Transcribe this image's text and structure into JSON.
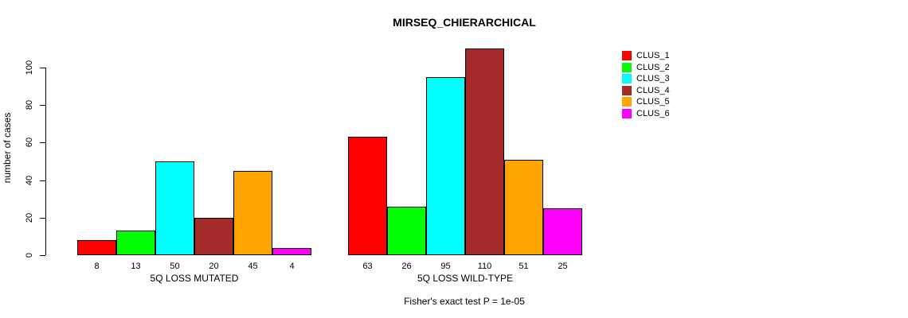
{
  "chart_data": {
    "type": "bar",
    "title": "MIRSEQ_CHIERARCHICAL",
    "ylabel": "number of cases",
    "xlabel": "",
    "ylim": [
      0,
      110
    ],
    "yticks": [
      0,
      20,
      40,
      60,
      80,
      100
    ],
    "grid": false,
    "legend_position": "right",
    "legend": [
      {
        "label": "CLUS_1",
        "color": "#FF0000"
      },
      {
        "label": "CLUS_2",
        "color": "#00FF00"
      },
      {
        "label": "CLUS_3",
        "color": "#00FFFF"
      },
      {
        "label": "CLUS_4",
        "color": "#A52A2A"
      },
      {
        "label": "CLUS_5",
        "color": "#FFA500"
      },
      {
        "label": "CLUS_6",
        "color": "#FF00FF"
      }
    ],
    "categories": [
      "CLUS_1",
      "CLUS_2",
      "CLUS_3",
      "CLUS_4",
      "CLUS_5",
      "CLUS_6"
    ],
    "groups": [
      {
        "label": "5Q LOSS MUTATED",
        "values": [
          8,
          13,
          50,
          20,
          45,
          4
        ]
      },
      {
        "label": "5Q LOSS WILD-TYPE",
        "values": [
          63,
          26,
          95,
          110,
          51,
          25
        ]
      }
    ],
    "annotation": "Fisher's exact test P = 1e-05",
    "axis_color": "#000000",
    "bar_border_color": "#000000"
  }
}
